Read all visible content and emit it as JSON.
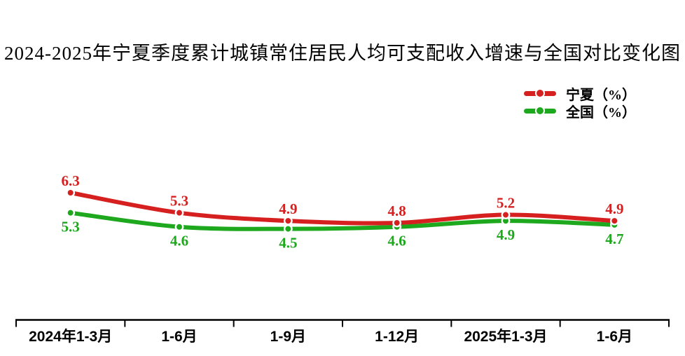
{
  "chart_data": {
    "type": "line",
    "title": "2024-2025年宁夏季度累计城镇常住居民人均可支配收入增速与全国对比变化图",
    "categories": [
      "2024年1-3月",
      "1-6月",
      "1-9月",
      "1-12月",
      "2025年1-3月",
      "1-6月"
    ],
    "series": [
      {
        "name": "宁夏（%）",
        "color": "#d62020",
        "values": [
          6.3,
          5.3,
          4.9,
          4.8,
          5.2,
          4.9
        ],
        "label_position": "above"
      },
      {
        "name": "全国（%）",
        "color": "#1ea81e",
        "values": [
          5.3,
          4.6,
          4.5,
          4.6,
          4.9,
          4.7
        ],
        "label_position": "below"
      }
    ],
    "ylim": [
      4.0,
      6.8
    ],
    "grid": false,
    "y_axis_visible": false,
    "legend_position": "top-right",
    "axis_color": "#000000",
    "data_labels": true
  }
}
